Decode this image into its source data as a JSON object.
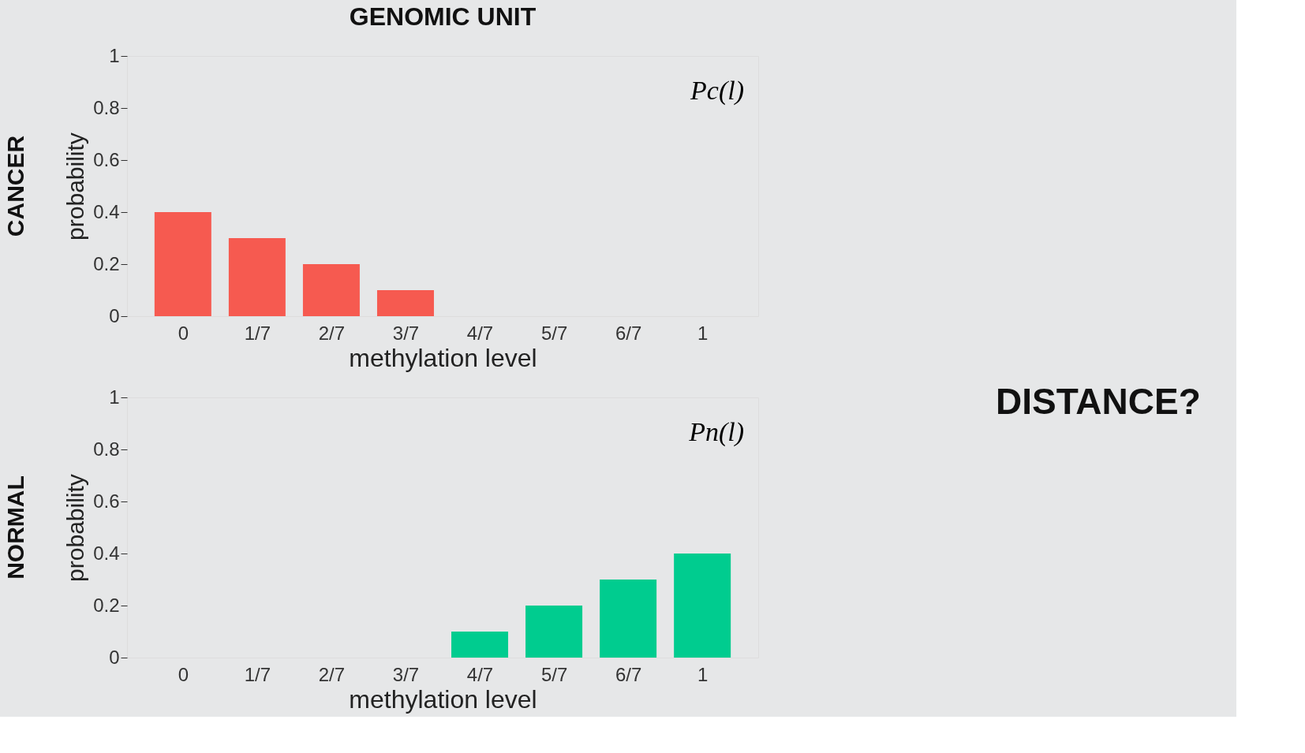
{
  "chart_data": [
    {
      "type": "bar",
      "title": "GENOMIC UNIT",
      "xlabel": "methylation level",
      "ylabel": "probability",
      "categories": [
        "0",
        "1/7",
        "2/7",
        "3/7",
        "4/7",
        "5/7",
        "6/7",
        "1"
      ],
      "values": [
        0.4,
        0.3,
        0.2,
        0.1,
        0,
        0,
        0,
        0
      ],
      "color": "#f65a50",
      "ylim": [
        0,
        1
      ],
      "yticks": [
        0,
        0.2,
        0.4,
        0.6,
        0.8,
        1
      ],
      "grid": false,
      "annotations": [
        "CANCER",
        "Pc(l)",
        "DISTANCE?"
      ]
    },
    {
      "type": "bar",
      "xlabel": "methylation level",
      "ylabel": "probability",
      "categories": [
        "0",
        "1/7",
        "2/7",
        "3/7",
        "4/7",
        "5/7",
        "6/7",
        "1"
      ],
      "values": [
        0,
        0,
        0,
        0,
        0.1,
        0.2,
        0.3,
        0.4
      ],
      "color": "#00cc8f",
      "ylim": [
        0,
        1
      ],
      "yticks": [
        0,
        0.2,
        0.4,
        0.6,
        0.8,
        1
      ],
      "grid": false,
      "annotations": [
        "NORMAL",
        "Pn(l)"
      ]
    }
  ]
}
